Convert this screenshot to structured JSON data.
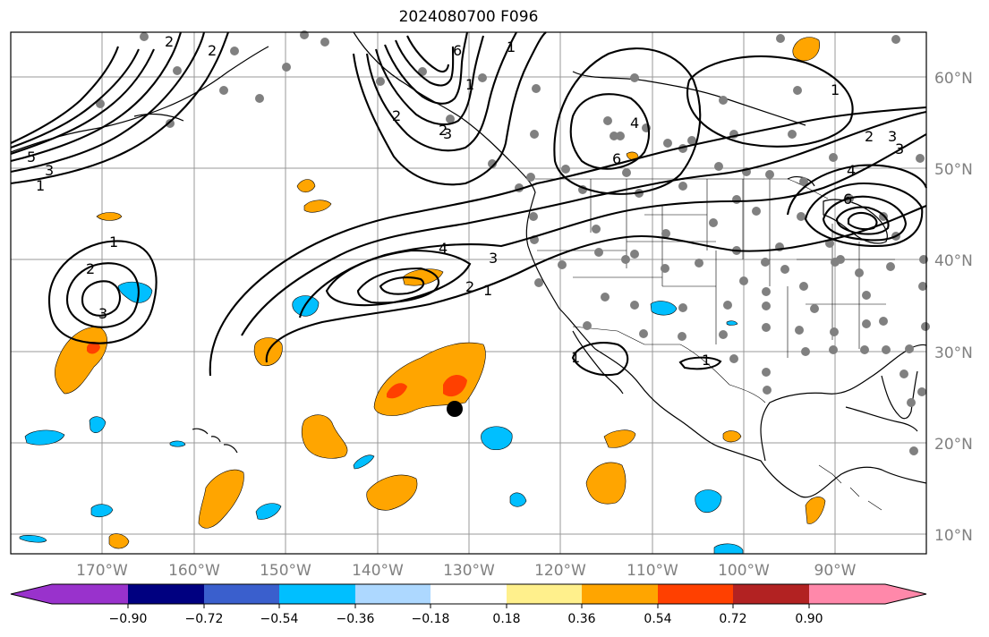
{
  "title": "2024080700 F096",
  "map": {
    "lat_labels": [
      "60°N",
      "50°N",
      "40°N",
      "30°N",
      "20°N",
      "10°N"
    ],
    "lon_labels": [
      "170°W",
      "160°W",
      "150°W",
      "140°W",
      "130°W",
      "120°W",
      "110°W",
      "100°W",
      "90°W"
    ],
    "contour_labels": [
      "1",
      "2",
      "3",
      "5",
      "1",
      "2",
      "3",
      "4",
      "1",
      "2",
      "3",
      "4",
      "1",
      "2",
      "3",
      "4",
      "1",
      "2",
      "3",
      "6",
      "1",
      "2",
      "3",
      "6",
      "2",
      "6",
      "1",
      "1"
    ],
    "colors": {
      "purple": "#9932cc",
      "navy": "#000080",
      "royal": "#3a5fcd",
      "deepsky": "#00bfff",
      "lightblue": "#add8ff",
      "white": "#ffffff",
      "lightyellow": "#fff08c",
      "orange": "#ffa500",
      "orangered": "#ff4000",
      "firebrick": "#b22222",
      "pink": "#ff88aa",
      "station": "#808080",
      "marker": "#000000",
      "grid": "#999999"
    }
  },
  "colorbar": {
    "ticks": [
      "−0.90",
      "−0.72",
      "−0.54",
      "−0.36",
      "−0.18",
      "0.18",
      "0.36",
      "0.54",
      "0.72",
      "0.90"
    ]
  }
}
